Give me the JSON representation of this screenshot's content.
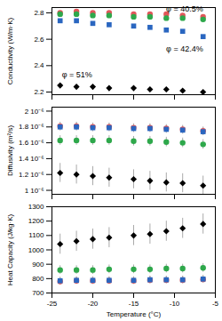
{
  "chart_data": [
    {
      "type": "scatter",
      "y_label": "Conductivity (W/m·K)",
      "x": [
        -24,
        -22,
        -20,
        -18,
        -15,
        -13,
        -11,
        -9,
        -6.5
      ],
      "xlim": [
        -25,
        -5
      ],
      "xticks": [
        -25,
        -20,
        -15,
        -10,
        -5
      ],
      "ylim": [
        2.18,
        2.84
      ],
      "yticks": [
        2.2,
        2.4,
        2.6,
        2.8
      ],
      "tick_labels": "y",
      "series": [
        {
          "name": "φ = 40.5%",
          "color": "#e0575a",
          "marker": "circle",
          "values": [
            2.8,
            2.81,
            2.8,
            2.8,
            2.79,
            2.79,
            2.79,
            2.78,
            2.77
          ]
        },
        {
          "color": "#2ea84b",
          "marker": "circle",
          "values": [
            2.79,
            2.79,
            2.78,
            2.78,
            2.77,
            2.77,
            2.76,
            2.76,
            2.75
          ]
        },
        {
          "name": "φ = 42.4%",
          "color": "#2a66c0",
          "marker": "square",
          "values": [
            2.74,
            2.74,
            2.72,
            2.71,
            2.7,
            2.69,
            2.67,
            2.66,
            2.62
          ]
        },
        {
          "name": "φ = 51%",
          "color": "#000000",
          "marker": "diamond",
          "values": [
            2.25,
            2.24,
            2.24,
            2.23,
            2.23,
            2.22,
            2.22,
            2.21,
            2.2
          ]
        }
      ]
    },
    {
      "type": "scatter",
      "y_label": "Diffusivity (m²/s)",
      "x": [
        -24,
        -22,
        -20,
        -18,
        -15,
        -13,
        -11,
        -9,
        -6.5
      ],
      "xlim": [
        -25,
        -5
      ],
      "xticks": [
        -25,
        -20,
        -15,
        -10,
        -5
      ],
      "ylim": [
        9.5e-07,
        2.05e-06
      ],
      "yticks": [
        {
          "value": 1e-06,
          "label": "1 10⁻⁶"
        },
        {
          "value": 1.2e-06,
          "label": "1.2 10⁻⁶"
        },
        {
          "value": 1.4e-06,
          "label": "1.4 10⁻⁶"
        },
        {
          "value": 1.6e-06,
          "label": "1.6 10⁻⁶"
        },
        {
          "value": 1.8e-06,
          "label": "1.8 10⁻⁶"
        },
        {
          "value": 2e-06,
          "label": "2 10⁻⁶"
        }
      ],
      "tick_labels": "y",
      "series": [
        {
          "color": "#e0575a",
          "marker": "circle",
          "values": [
            1.81e-06,
            1.81e-06,
            1.8e-06,
            1.8e-06,
            1.79e-06,
            1.79e-06,
            1.78e-06,
            1.77e-06,
            1.75e-06
          ],
          "errors": [
            5e-08,
            5e-08,
            5e-08,
            5e-08,
            5e-08,
            5e-08,
            5e-08,
            5e-08,
            5e-08
          ]
        },
        {
          "color": "#2ea84b",
          "marker": "circle",
          "values": [
            1.63e-06,
            1.63e-06,
            1.63e-06,
            1.63e-06,
            1.62e-06,
            1.62e-06,
            1.61e-06,
            1.6e-06,
            1.58e-06
          ],
          "errors": [
            6e-08,
            6e-08,
            6e-08,
            6e-08,
            6e-08,
            6e-08,
            6e-08,
            6e-08,
            6e-08
          ]
        },
        {
          "color": "#2a66c0",
          "marker": "square",
          "values": [
            1.8e-06,
            1.8e-06,
            1.79e-06,
            1.79e-06,
            1.78e-06,
            1.78e-06,
            1.77e-06,
            1.76e-06,
            1.74e-06
          ],
          "errors": [
            5e-08,
            5e-08,
            5e-08,
            5e-08,
            5e-08,
            5e-08,
            5e-08,
            5e-08,
            5e-08
          ]
        },
        {
          "color": "#000000",
          "marker": "diamond",
          "values": [
            1.22e-06,
            1.2e-06,
            1.18e-06,
            1.16e-06,
            1.14e-06,
            1.12e-06,
            1.1e-06,
            1.09e-06,
            1.06e-06
          ],
          "errors": [
            1.2e-07,
            1.2e-07,
            1.2e-07,
            1.2e-07,
            1.2e-07,
            1.2e-07,
            1.2e-07,
            1.2e-07,
            1.2e-07
          ]
        }
      ]
    },
    {
      "type": "scatter",
      "y_label": "Heat Capacity (J/kg·K)",
      "x_label": "Temperature (°C)",
      "x": [
        -24,
        -22,
        -20,
        -18,
        -15,
        -13,
        -11,
        -9,
        -6.5
      ],
      "xlim": [
        -25,
        -5
      ],
      "xticks": [
        -25,
        -20,
        -15,
        -10,
        -5
      ],
      "ylim": [
        700,
        1300
      ],
      "yticks": [
        700,
        800,
        900,
        1000,
        1100,
        1200,
        1300
      ],
      "series": [
        {
          "color": "#e0575a",
          "marker": "circle",
          "values": [
            780,
            785,
            785,
            785,
            785,
            790,
            790,
            790,
            795
          ],
          "errors": [
            25,
            25,
            25,
            25,
            25,
            25,
            25,
            25,
            25
          ]
        },
        {
          "color": "#2ea84b",
          "marker": "circle",
          "values": [
            860,
            860,
            860,
            865,
            865,
            865,
            870,
            870,
            875
          ],
          "errors": [
            30,
            30,
            30,
            30,
            30,
            30,
            30,
            30,
            30
          ]
        },
        {
          "color": "#2a66c0",
          "marker": "square",
          "values": [
            785,
            788,
            788,
            788,
            788,
            792,
            792,
            792,
            797
          ],
          "errors": [
            25,
            25,
            25,
            25,
            25,
            25,
            25,
            25,
            25
          ]
        },
        {
          "color": "#000000",
          "marker": "diamond",
          "values": [
            1040,
            1060,
            1075,
            1085,
            1100,
            1110,
            1130,
            1150,
            1180
          ],
          "errors": [
            70,
            70,
            70,
            70,
            70,
            70,
            70,
            70,
            70
          ]
        }
      ]
    }
  ]
}
